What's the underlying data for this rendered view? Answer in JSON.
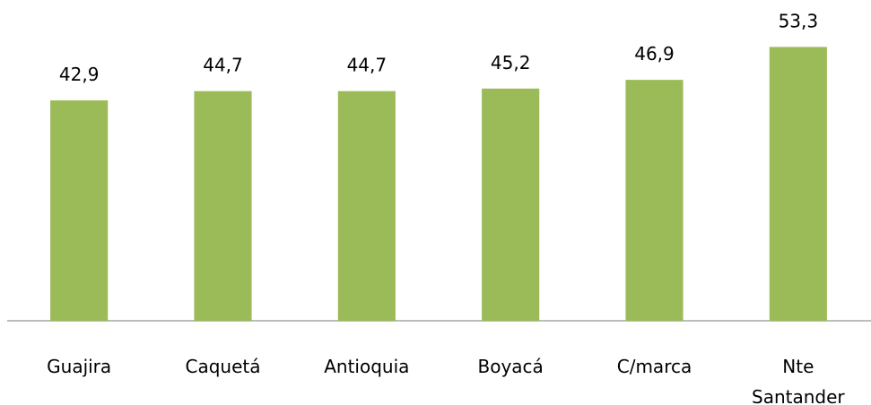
{
  "chart_data": {
    "type": "bar",
    "categories": [
      "Guajira",
      "Caquetá",
      "Antioquia",
      "Boyacá",
      "C/marca",
      "Nte Santander"
    ],
    "values": [
      42.9,
      44.7,
      44.7,
      45.2,
      46.9,
      53.3
    ],
    "value_labels": [
      "42,9",
      "44,7",
      "44,7",
      "45,2",
      "46,9",
      "53,3"
    ],
    "color": "#9bbb59",
    "ylim": [
      0,
      60
    ]
  }
}
